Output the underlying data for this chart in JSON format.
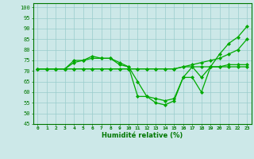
{
  "xlabel": "Humidité relative (%)",
  "x_ticks": [
    0,
    1,
    2,
    3,
    4,
    5,
    6,
    7,
    8,
    9,
    10,
    11,
    12,
    13,
    14,
    15,
    16,
    17,
    18,
    19,
    20,
    21,
    22,
    23
  ],
  "xlim": [
    -0.5,
    23.5
  ],
  "ylim": [
    45,
    102
  ],
  "y_ticks": [
    45,
    50,
    55,
    60,
    65,
    70,
    75,
    80,
    85,
    90,
    95,
    100
  ],
  "background_color": "#cce8e8",
  "grid_color": "#99cccc",
  "line_color": "#00aa00",
  "marker": "D",
  "markersize": 2.0,
  "linewidth": 0.9,
  "series": [
    [
      71,
      71,
      71,
      71,
      75,
      75,
      77,
      76,
      76,
      73,
      72,
      58,
      58,
      55,
      54,
      56,
      67,
      67,
      60,
      72,
      78,
      83,
      86,
      91
    ],
    [
      71,
      71,
      71,
      71,
      74,
      75,
      76,
      76,
      76,
      74,
      72,
      65,
      58,
      57,
      56,
      57,
      67,
      72,
      67,
      72,
      72,
      73,
      73,
      73
    ],
    [
      71,
      71,
      71,
      71,
      71,
      71,
      71,
      71,
      71,
      71,
      71,
      71,
      71,
      71,
      71,
      71,
      72,
      72,
      72,
      72,
      72,
      72,
      72,
      72
    ],
    [
      71,
      71,
      71,
      71,
      71,
      71,
      71,
      71,
      71,
      71,
      71,
      71,
      71,
      71,
      71,
      71,
      72,
      73,
      74,
      75,
      76,
      78,
      80,
      85
    ]
  ]
}
